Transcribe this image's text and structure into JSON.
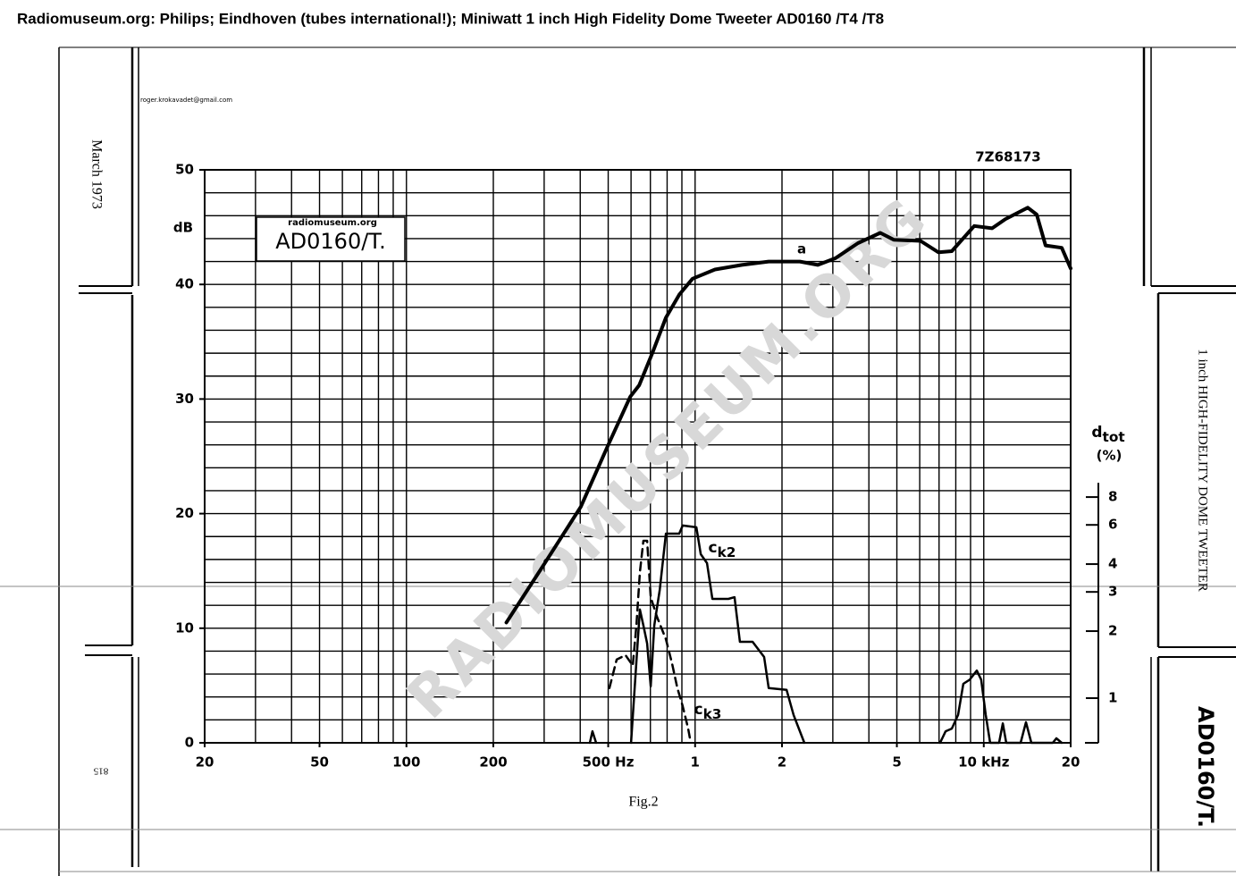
{
  "page_title": "Radiomuseum.org: Philips; Eindhoven (tubes international!); Miniwatt 1 inch High Fidelity Dome Tweeter AD0160 /T4 /T8",
  "chart_data": {
    "type": "line",
    "code": "7Z68173",
    "caption": "Fig.2",
    "box_source": "radiomuseum.org",
    "box_title": "AD0160/T.",
    "email": "roger.krokavadet@gmail.com",
    "watermark": "RADIOMUSEUM.ORG",
    "side_date": "March 1973",
    "side_product": "1 inch HIGH-FIDELITY DOME TWEETER",
    "side_type": "AD0160/T.",
    "page_code": "815",
    "ylabel": "dB",
    "y2label": "dtot",
    "y2unit": "(%)",
    "xscale": "log",
    "y2scale": "log",
    "xlim": [
      20,
      20000
    ],
    "ylim": [
      0,
      50
    ],
    "y2lim": [
      0.63,
      236
    ],
    "xticks": [
      20,
      50,
      100,
      200,
      {
        "value": 500,
        "label": "500 Hz"
      },
      {
        "value": 1000,
        "label": "1"
      },
      {
        "value": 2000,
        "label": "2"
      },
      {
        "value": 5000,
        "label": "5"
      },
      {
        "value": 10000,
        "label": "10 kHz"
      },
      {
        "value": 20000,
        "label": "20"
      }
    ],
    "yticks": [
      0,
      10,
      20,
      30,
      40,
      50
    ],
    "y2ticks": [
      1,
      2,
      3,
      4,
      6,
      8
    ],
    "xgrid": [
      20,
      30,
      40,
      50,
      60,
      70,
      80,
      90,
      100,
      200,
      300,
      400,
      500,
      600,
      700,
      800,
      900,
      1000,
      2000,
      3000,
      4000,
      5000,
      6000,
      7000,
      8000,
      9000,
      10000,
      20000
    ],
    "ygrid": [
      0,
      2,
      4,
      6,
      8,
      10,
      12,
      14,
      16,
      18,
      20,
      22,
      24,
      26,
      28,
      30,
      32,
      34,
      36,
      38,
      40,
      42,
      44,
      46,
      48,
      50
    ],
    "grid": true,
    "series": [
      {
        "name": "a",
        "color": "#000000",
        "dash": false,
        "width": 4,
        "x": [
          222,
          302,
          402,
          498,
          596,
          640,
          711,
          792,
          881,
          980,
          1172,
          1452,
          1798,
          2306,
          2662,
          3070,
          3666,
          4380,
          4876,
          6040,
          6966,
          7748,
          9268,
          10690,
          11886,
          14200,
          15250,
          16370,
          18620,
          20000
        ],
        "values": [
          10.5,
          15.7,
          20.6,
          25.9,
          30.2,
          31.2,
          34.0,
          37.1,
          39.1,
          40.5,
          41.3,
          41.7,
          42.0,
          42.0,
          41.7,
          42.3,
          43.6,
          44.5,
          43.9,
          43.8,
          42.8,
          42.9,
          45.1,
          44.9,
          45.7,
          46.7,
          46.1,
          43.4,
          43.2,
          41.4
        ]
      },
      {
        "name": "ck2",
        "color": "#000000",
        "dash": false,
        "width": 2.5,
        "axis": "y2",
        "x": [
          432,
          441,
          454,
          null,
          600,
          626,
          644,
          662,
          682,
          702,
          722,
          754,
          792,
          881,
          906,
          1010,
          1046,
          1100,
          1148,
          1304,
          1370,
          1430,
          1582,
          1734,
          1798,
          2074,
          2194,
          2390,
          null,
          7060,
          7380,
          7748,
          8148,
          8494,
          8934,
          9460,
          9800,
          10160,
          10520,
          11300,
          11640,
          11960,
          13420,
          14000,
          14620,
          17340,
          17840,
          18620
        ],
        "values": [
          0.63,
          0.71,
          0.63,
          null,
          0.63,
          1.46,
          2.5,
          2.12,
          1.76,
          1.13,
          2.12,
          3.06,
          5.48,
          5.48,
          5.96,
          5.85,
          4.43,
          4.04,
          2.79,
          2.79,
          2.84,
          1.79,
          1.79,
          1.53,
          1.11,
          1.09,
          0.84,
          0.63,
          null,
          0.63,
          0.71,
          0.73,
          0.84,
          1.16,
          1.21,
          1.33,
          1.21,
          0.84,
          0.63,
          0.63,
          0.77,
          0.63,
          0.63,
          0.78,
          0.63,
          0.63,
          0.66,
          0.63
        ]
      },
      {
        "name": "ck3",
        "color": "#000000",
        "dash": true,
        "width": 2.5,
        "axis": "y2",
        "x": [
          505,
          535,
          574,
          608,
          626,
          644,
          662,
          682,
          702,
          738,
          792,
          832,
          868,
          906,
          946,
          966
        ],
        "values": [
          1.11,
          1.49,
          1.56,
          1.4,
          2.12,
          3.68,
          5.09,
          5.09,
          2.84,
          2.32,
          1.84,
          1.43,
          1.11,
          0.92,
          0.73,
          0.63
        ]
      }
    ]
  }
}
